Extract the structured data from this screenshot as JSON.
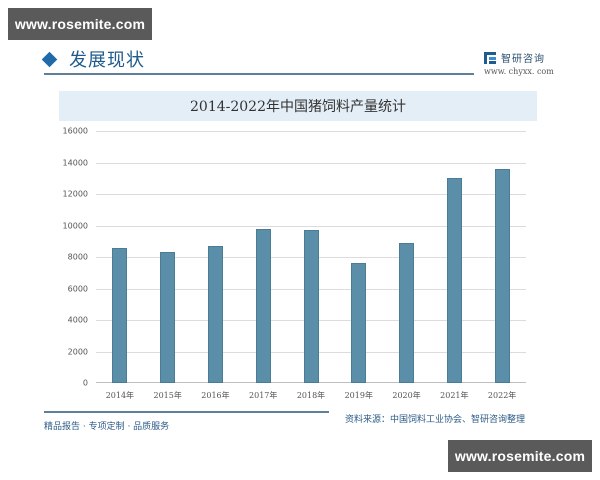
{
  "watermarks": {
    "top": "www.rosemite.com",
    "bottom": "www.rosemite.com"
  },
  "header": {
    "section_title": "发展现状",
    "brand_name": "智研咨询",
    "brand_url": "www. chyxx. com"
  },
  "footer": {
    "slogan": "精品报告 · 专项定制 · 品质服务",
    "source": "资料来源：中国饲料工业协会、智研咨询整理"
  },
  "colors": {
    "bar": "#5b8ea8",
    "accent": "#1f5b8c",
    "title_band": "#e3eef7"
  },
  "chart_data": {
    "type": "bar",
    "title": "2014-2022年中国猪饲料产量统计",
    "xlabel": "",
    "ylabel": "",
    "categories": [
      "2014年",
      "2015年",
      "2016年",
      "2017年",
      "2018年",
      "2019年",
      "2020年",
      "2021年",
      "2022年"
    ],
    "values": [
      8600,
      8300,
      8700,
      9800,
      9700,
      7600,
      8900,
      13000,
      13600
    ],
    "ylim": [
      0,
      16000
    ],
    "yticks": [
      0,
      2000,
      4000,
      6000,
      8000,
      10000,
      12000,
      14000,
      16000
    ],
    "grid": true,
    "legend": null
  }
}
